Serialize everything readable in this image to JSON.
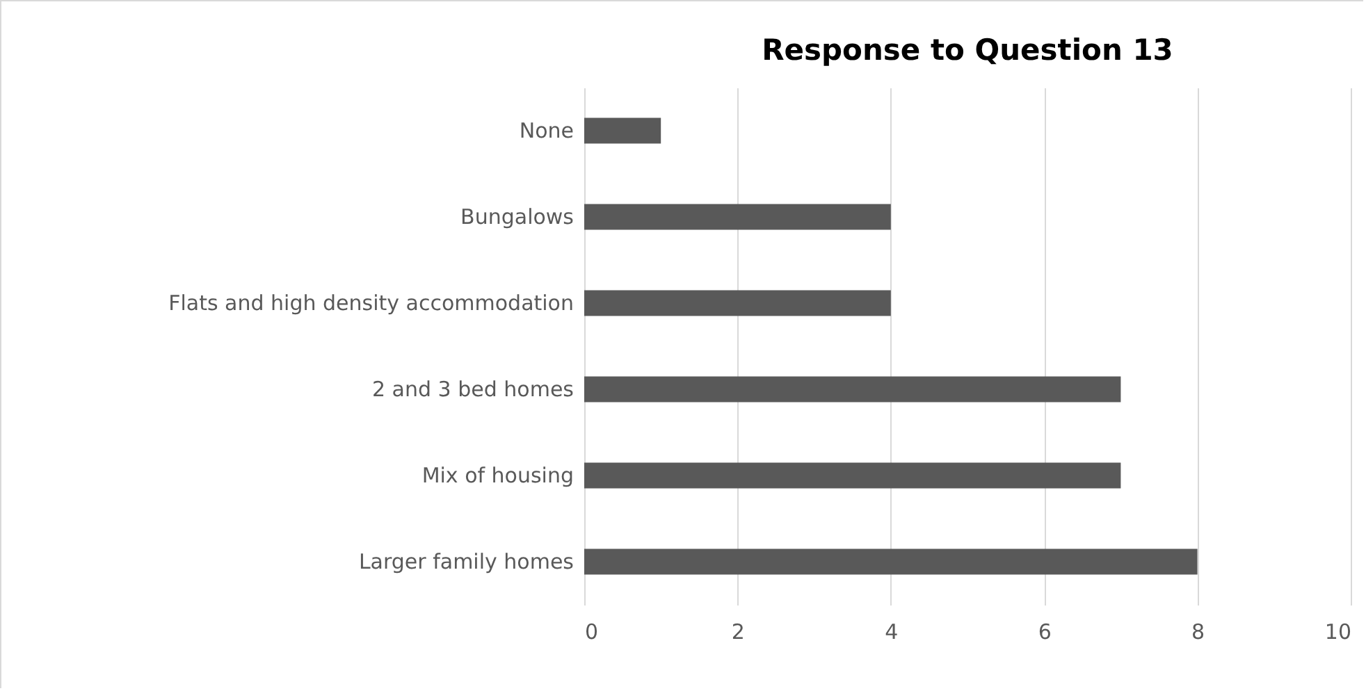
{
  "chart_data": {
    "type": "bar",
    "orientation": "horizontal",
    "title": "Response to Question 13",
    "categories": [
      "None",
      "Bungalows",
      "Flats and high density accommodation",
      "2 and 3 bed homes",
      "Mix of housing",
      "Larger family homes"
    ],
    "values": [
      1,
      4,
      4,
      7,
      7,
      8
    ],
    "color": "#595959",
    "xlim": [
      0,
      10
    ],
    "xticks": [
      0,
      2,
      4,
      6,
      8,
      10
    ],
    "grid": "x"
  }
}
